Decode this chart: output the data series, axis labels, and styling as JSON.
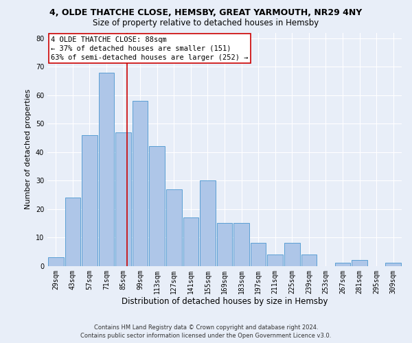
{
  "title": "4, OLDE THATCHE CLOSE, HEMSBY, GREAT YARMOUTH, NR29 4NY",
  "subtitle": "Size of property relative to detached houses in Hemsby",
  "xlabel": "Distribution of detached houses by size in Hemsby",
  "ylabel": "Number of detached properties",
  "categories": [
    "29sqm",
    "43sqm",
    "57sqm",
    "71sqm",
    "85sqm",
    "99sqm",
    "113sqm",
    "127sqm",
    "141sqm",
    "155sqm",
    "169sqm",
    "183sqm",
    "197sqm",
    "211sqm",
    "225sqm",
    "239sqm",
    "253sqm",
    "267sqm",
    "281sqm",
    "295sqm",
    "309sqm"
  ],
  "values": [
    3,
    24,
    46,
    68,
    47,
    58,
    42,
    27,
    17,
    30,
    15,
    15,
    8,
    4,
    8,
    4,
    0,
    1,
    2,
    0,
    1
  ],
  "bar_color": "#aec6e8",
  "bar_edge_color": "#5a9fd4",
  "annotation_text": "4 OLDE THATCHE CLOSE: 88sqm\n← 37% of detached houses are smaller (151)\n63% of semi-detached houses are larger (252) →",
  "annotation_box_color": "#ffffff",
  "annotation_box_edge": "#cc0000",
  "vline_color": "#cc0000",
  "footer1": "Contains HM Land Registry data © Crown copyright and database right 2024.",
  "footer2": "Contains public sector information licensed under the Open Government Licence v3.0.",
  "ylim": [
    0,
    82
  ],
  "yticks": [
    0,
    10,
    20,
    30,
    40,
    50,
    60,
    70,
    80
  ],
  "bg_color": "#e8eef8",
  "grid_color": "#ffffff",
  "title_fontsize": 9,
  "subtitle_fontsize": 8.5,
  "xlabel_fontsize": 8.5,
  "ylabel_fontsize": 8,
  "tick_fontsize": 7,
  "annotation_fontsize": 7.5,
  "footer_fontsize": 6
}
